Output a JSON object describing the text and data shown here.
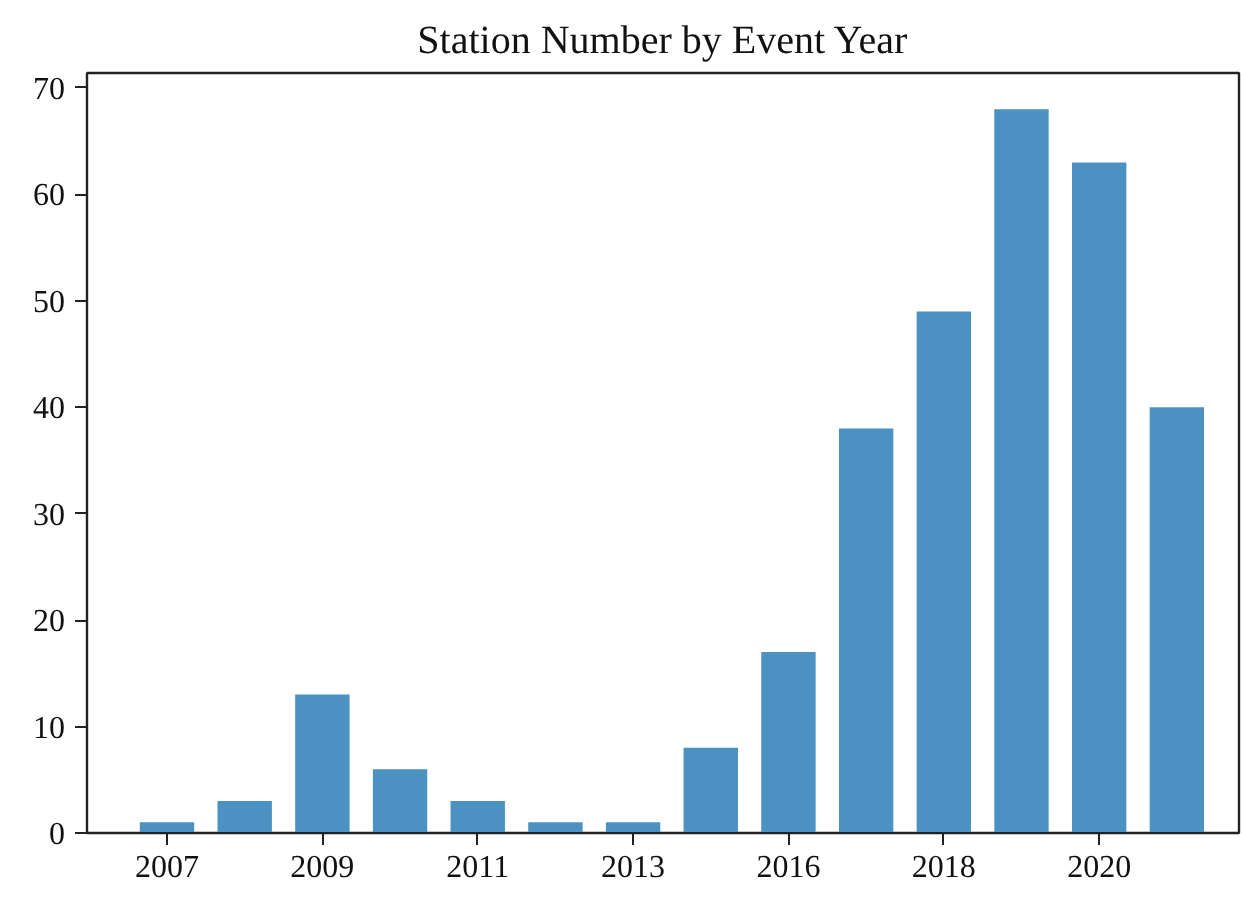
{
  "chart_data": {
    "type": "bar",
    "title": "Station Number by Event Year",
    "categories": [
      "2007",
      null,
      "2009",
      null,
      "2011",
      null,
      "2013",
      null,
      "2016",
      null,
      "2018",
      null,
      "2020",
      null
    ],
    "values": [
      1,
      3,
      13,
      6,
      3,
      1,
      1,
      8,
      17,
      38,
      49,
      68,
      63,
      40
    ],
    "color": "#4b92c3",
    "ylim": [
      0,
      71.4
    ],
    "yticks": [
      0,
      10,
      20,
      30,
      40,
      50,
      60,
      70
    ],
    "grid": false
  }
}
